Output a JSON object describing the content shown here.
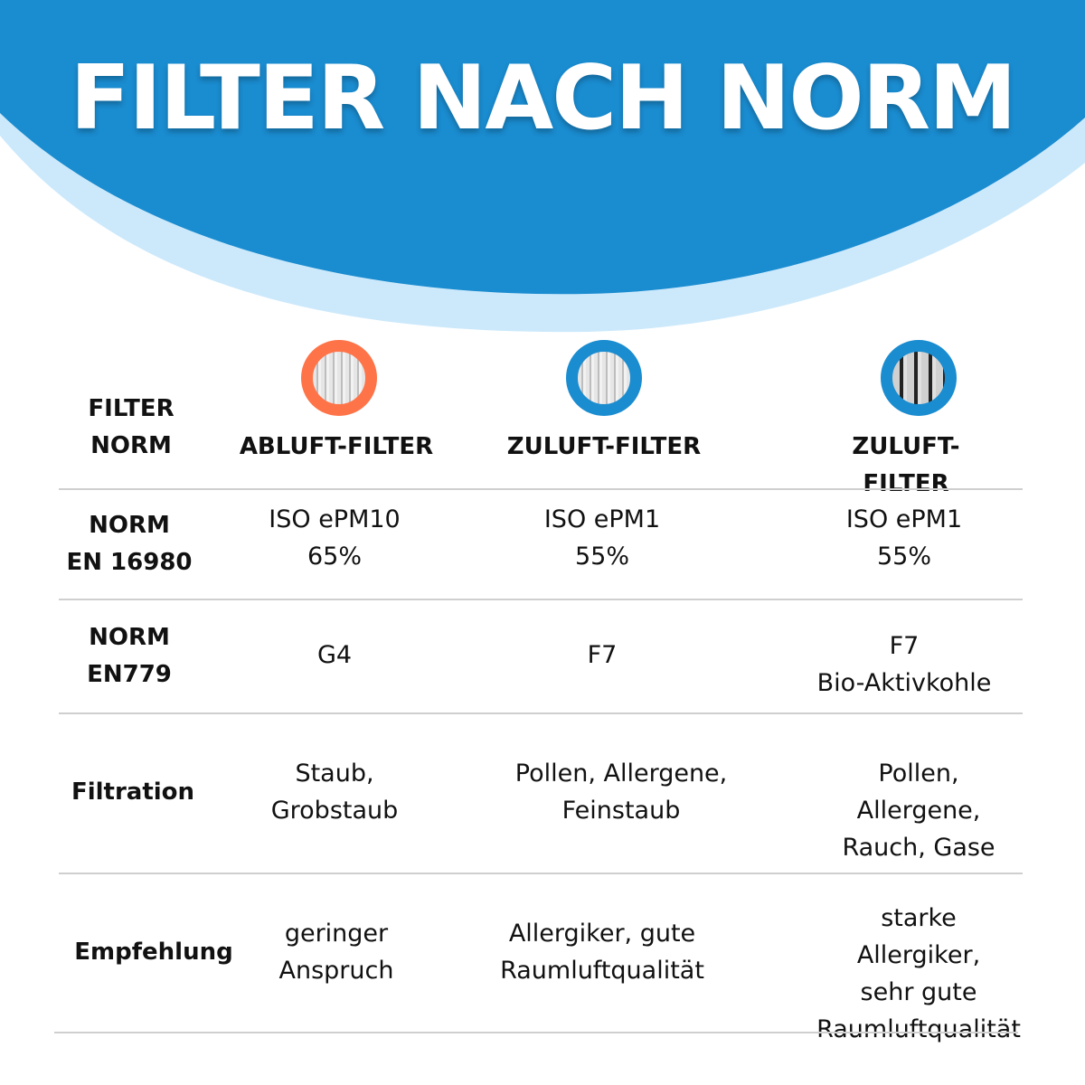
{
  "title": "FILTER NACH NORM",
  "colors": {
    "primary_blue": "#1a8cd0",
    "light_blue": "#cce9fb",
    "orange": "#ff7348"
  },
  "header_label": "FILTER\nNORM",
  "columns": [
    {
      "name": "ABLUFT-FILTER",
      "icon": "filter-orange-ring-icon"
    },
    {
      "name": "ZULUFT-FILTER",
      "icon": "filter-blue-ring-icon"
    },
    {
      "name": "ZULUFT-FILTER",
      "icon": "filter-activated-carbon-icon"
    }
  ],
  "rows": [
    {
      "label": "NORM\nEN 16980",
      "values": [
        "ISO ePM10\n65%",
        "ISO ePM1\n55%",
        "ISO ePM1\n55%"
      ]
    },
    {
      "label": "NORM\nEN779",
      "values": [
        "G4",
        "F7",
        "F7\nBio-Aktivkohle"
      ]
    },
    {
      "label": "Filtration",
      "values": [
        "Staub,\nGrobstaub",
        "Pollen, Allergene,\nFeinstaub",
        "Pollen, Allergene,\nRauch, Gase"
      ]
    },
    {
      "label": "Empfehlung",
      "values": [
        "geringer\nAnspruch",
        "Allergiker, gute\nRaumluftqualität",
        "starke Allergiker,\nsehr gute\nRaumluftqualität"
      ]
    }
  ]
}
